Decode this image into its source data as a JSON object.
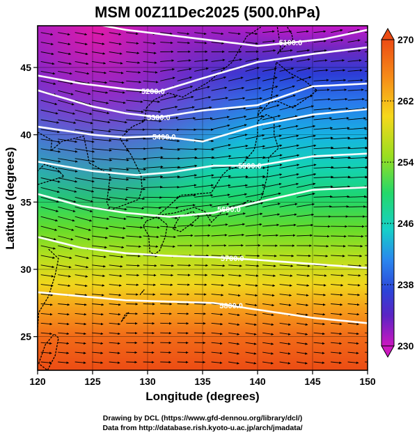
{
  "title": "MSM 00Z11Dec2025 (500.0hPa)",
  "xlabel": "Longitude (degrees)",
  "ylabel": "Latitude  (degrees)",
  "credit_line1": "Drawing by DCL (https://www.gfd-dennou.org/library/dcl/)",
  "credit_line2": "Data from http://database.rish.kyoto-u.ac.jp/arch/jmadata/",
  "x_ticks": [
    "120",
    "125",
    "130",
    "135",
    "140",
    "145",
    "150"
  ],
  "y_ticks": [
    "25",
    "30",
    "35",
    "40",
    "45"
  ],
  "colorbar_ticks": [
    "270",
    "262",
    "254",
    "246",
    "238",
    "230"
  ],
  "contours": [
    {
      "label": "5100.0",
      "label_lon": 143.0,
      "points": [
        [
          120,
          49.0
        ],
        [
          128,
          47.8
        ],
        [
          134,
          47.2
        ],
        [
          140,
          46.6
        ],
        [
          146,
          47.1
        ],
        [
          150,
          47.8
        ]
      ]
    },
    {
      "label": "5200.0",
      "label_lon": 130.5,
      "points": [
        [
          120,
          44.4
        ],
        [
          124,
          43.8
        ],
        [
          128,
          43.4
        ],
        [
          131,
          43.2
        ],
        [
          135,
          44.2
        ],
        [
          140,
          45.4
        ],
        [
          145,
          46.0
        ],
        [
          150,
          46.5
        ]
      ]
    },
    {
      "label": "5300.0",
      "label_lon": 131.0,
      "points": [
        [
          120,
          43.3
        ],
        [
          125,
          42.1
        ],
        [
          128,
          41.6
        ],
        [
          131,
          41.3
        ],
        [
          135,
          41.8
        ],
        [
          140,
          42.2
        ],
        [
          145,
          43.6
        ],
        [
          150,
          43.8
        ]
      ]
    },
    {
      "label": "5400.0",
      "label_lon": 131.5,
      "points": [
        [
          120,
          40.6
        ],
        [
          125,
          40.0
        ],
        [
          128,
          39.8
        ],
        [
          131,
          39.9
        ],
        [
          135,
          39.5
        ],
        [
          140,
          40.7
        ],
        [
          145,
          41.5
        ],
        [
          150,
          41.9
        ]
      ]
    },
    {
      "label": "5500.0",
      "label_lon": 139.3,
      "points": [
        [
          120,
          38.0
        ],
        [
          125,
          37.3
        ],
        [
          129,
          37.0
        ],
        [
          132,
          37.2
        ],
        [
          136,
          37.7
        ],
        [
          140,
          37.7
        ],
        [
          145,
          38.4
        ],
        [
          150,
          38.6
        ]
      ]
    },
    {
      "label": "5600.0",
      "label_lon": 137.4,
      "points": [
        [
          120,
          35.6
        ],
        [
          124,
          34.7
        ],
        [
          128,
          34.2
        ],
        [
          132,
          33.9
        ],
        [
          136,
          34.2
        ],
        [
          140,
          35.0
        ],
        [
          145,
          35.9
        ],
        [
          150,
          36.1
        ]
      ]
    },
    {
      "label": "5700.0",
      "label_lon": 137.7,
      "points": [
        [
          120,
          32.4
        ],
        [
          124,
          31.6
        ],
        [
          128,
          31.2
        ],
        [
          132,
          31.0
        ],
        [
          136,
          30.9
        ],
        [
          140,
          30.7
        ],
        [
          145,
          30.4
        ],
        [
          150,
          30.1
        ]
      ]
    },
    {
      "label": "5800.0",
      "label_lon": 137.6,
      "points": [
        [
          120,
          28.3
        ],
        [
          124,
          28.0
        ],
        [
          128,
          27.7
        ],
        [
          132,
          27.6
        ],
        [
          136,
          27.5
        ],
        [
          140,
          27.0
        ],
        [
          145,
          26.4
        ],
        [
          150,
          26.0
        ]
      ]
    }
  ],
  "coastlines": [
    {
      "name": "honshu",
      "points": [
        [
          130.9,
          34.0
        ],
        [
          131.8,
          34.6
        ],
        [
          133.0,
          35.5
        ],
        [
          134.5,
          35.6
        ],
        [
          135.8,
          35.7
        ],
        [
          136.8,
          37.0
        ],
        [
          137.3,
          37.4
        ],
        [
          138.5,
          37.7
        ],
        [
          139.7,
          38.9
        ],
        [
          140.0,
          40.0
        ],
        [
          140.0,
          41.0
        ],
        [
          140.8,
          41.5
        ],
        [
          141.5,
          41.2
        ],
        [
          141.5,
          40.0
        ],
        [
          141.9,
          39.0
        ],
        [
          141.0,
          38.3
        ],
        [
          140.9,
          37.0
        ],
        [
          140.6,
          36.0
        ],
        [
          140.3,
          35.2
        ],
        [
          139.8,
          35.0
        ],
        [
          139.1,
          35.1
        ],
        [
          138.5,
          34.7
        ],
        [
          137.3,
          34.6
        ],
        [
          136.8,
          34.3
        ],
        [
          135.8,
          33.5
        ],
        [
          135.2,
          34.3
        ],
        [
          134.2,
          34.6
        ],
        [
          132.5,
          34.2
        ],
        [
          130.9,
          34.0
        ]
      ]
    },
    {
      "name": "hokkaido",
      "points": [
        [
          140.0,
          41.4
        ],
        [
          141.2,
          42.5
        ],
        [
          141.7,
          45.4
        ],
        [
          142.9,
          44.6
        ],
        [
          144.3,
          44.0
        ],
        [
          145.4,
          43.3
        ],
        [
          144.8,
          42.9
        ],
        [
          143.2,
          42.0
        ],
        [
          141.8,
          42.5
        ],
        [
          140.3,
          42.3
        ],
        [
          140.0,
          41.4
        ]
      ]
    },
    {
      "name": "kyushu",
      "points": [
        [
          129.9,
          33.6
        ],
        [
          130.9,
          33.9
        ],
        [
          131.8,
          33.3
        ],
        [
          131.6,
          32.4
        ],
        [
          131.1,
          31.4
        ],
        [
          130.6,
          31.1
        ],
        [
          130.2,
          31.3
        ],
        [
          130.1,
          32.5
        ],
        [
          129.6,
          33.2
        ],
        [
          129.9,
          33.6
        ]
      ]
    },
    {
      "name": "shikoku",
      "points": [
        [
          132.3,
          33.0
        ],
        [
          132.9,
          33.9
        ],
        [
          134.1,
          34.3
        ],
        [
          134.7,
          33.9
        ],
        [
          134.0,
          33.4
        ],
        [
          133.0,
          32.8
        ],
        [
          132.3,
          33.0
        ]
      ]
    },
    {
      "name": "korea",
      "points": [
        [
          124.7,
          37.9
        ],
        [
          125.4,
          37.6
        ],
        [
          126.6,
          37.0
        ],
        [
          126.3,
          35.0
        ],
        [
          126.6,
          34.4
        ],
        [
          127.6,
          34.7
        ],
        [
          129.2,
          35.2
        ],
        [
          129.5,
          36.0
        ],
        [
          129.4,
          37.0
        ],
        [
          128.5,
          38.5
        ],
        [
          127.5,
          39.7
        ],
        [
          128.6,
          40.6
        ],
        [
          129.7,
          41.0
        ],
        [
          129.9,
          42.0
        ]
      ]
    },
    {
      "name": "mainland",
      "points": [
        [
          121.0,
          31.5
        ],
        [
          121.9,
          30.8
        ],
        [
          121.6,
          29.6
        ],
        [
          121.0,
          28.0
        ],
        [
          120.1,
          26.8
        ],
        [
          120.0,
          25.5
        ]
      ]
    },
    {
      "name": "bohai",
      "points": [
        [
          120.0,
          36.3
        ],
        [
          120.8,
          36.5
        ],
        [
          122.4,
          36.9
        ],
        [
          121.7,
          37.5
        ],
        [
          120.6,
          37.8
        ],
        [
          120.0,
          37.3
        ]
      ]
    },
    {
      "name": "liaodong",
      "points": [
        [
          120.0,
          40.2
        ],
        [
          121.3,
          39.6
        ],
        [
          121.2,
          38.8
        ],
        [
          122.2,
          39.5
        ],
        [
          124.2,
          39.9
        ],
        [
          124.7,
          37.9
        ]
      ]
    },
    {
      "name": "primorye",
      "points": [
        [
          129.9,
          42.0
        ],
        [
          130.6,
          42.6
        ],
        [
          131.9,
          43.1
        ],
        [
          133.2,
          42.8
        ],
        [
          135.5,
          43.9
        ],
        [
          137.7,
          45.4
        ],
        [
          139.0,
          47.3
        ],
        [
          140.3,
          48.0
        ]
      ]
    },
    {
      "name": "sakhalin",
      "points": [
        [
          141.8,
          48.0
        ],
        [
          142.1,
          46.4
        ],
        [
          141.8,
          46.0
        ],
        [
          142.6,
          46.7
        ],
        [
          143.3,
          46.7
        ],
        [
          143.1,
          47.5
        ],
        [
          142.7,
          48.0
        ]
      ]
    },
    {
      "name": "taiwan",
      "points": [
        [
          120.1,
          23.0
        ],
        [
          120.7,
          24.4
        ],
        [
          121.5,
          25.2
        ],
        [
          121.9,
          24.9
        ],
        [
          121.6,
          23.6
        ],
        [
          120.9,
          22.5
        ],
        [
          120.1,
          23.0
        ]
      ]
    },
    {
      "name": "ryukyu",
      "points": [
        [
          127.6,
          26.1
        ],
        [
          128.0,
          26.7
        ],
        [
          128.3,
          26.8
        ],
        [
          127.8,
          26.3
        ],
        [
          127.6,
          26.1
        ]
      ]
    },
    {
      "name": "amami",
      "points": [
        [
          129.3,
          28.1
        ],
        [
          129.7,
          28.5
        ],
        [
          129.4,
          28.2
        ],
        [
          129.3,
          28.1
        ]
      ]
    }
  ]
}
